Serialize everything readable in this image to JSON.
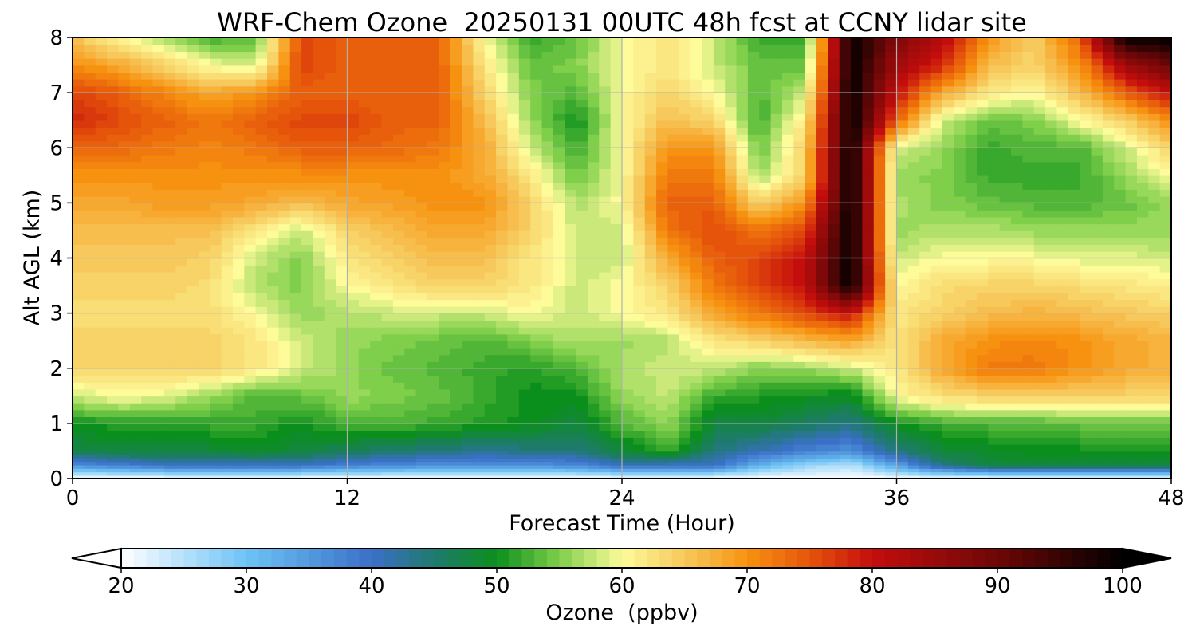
{
  "chart_data": {
    "type": "heatmap",
    "title": "WRF-Chem Ozone  20250131 00UTC 48h fcst at CCNY lidar site",
    "xlabel": "Forecast Time (Hour)",
    "ylabel": "Alt AGL (km)",
    "xlim": [
      0,
      48
    ],
    "ylim": [
      0,
      8
    ],
    "xticks": [
      0,
      12,
      24,
      36,
      48
    ],
    "yticks": [
      0,
      1,
      2,
      3,
      4,
      5,
      6,
      7,
      8
    ],
    "grid": true,
    "x": [
      0,
      2,
      4,
      6,
      8,
      10,
      12,
      14,
      16,
      18,
      20,
      22,
      24,
      26,
      28,
      30,
      32,
      34,
      36,
      38,
      40,
      42,
      44,
      46,
      48
    ],
    "y": [
      0,
      0.25,
      0.5,
      1,
      1.5,
      2,
      2.5,
      3,
      3.5,
      4,
      4.5,
      5,
      5.5,
      6,
      6.5,
      7,
      7.5,
      8
    ],
    "z": [
      [
        20,
        20,
        20,
        20,
        20,
        20,
        20,
        20,
        20,
        20,
        20,
        20,
        20,
        20,
        20,
        20,
        20,
        20,
        20,
        20,
        20,
        20,
        20,
        20,
        20
      ],
      [
        36,
        38,
        40,
        40,
        40,
        40,
        38,
        37,
        36,
        36,
        36,
        37,
        41,
        40,
        40,
        32,
        27,
        25,
        34,
        44,
        48,
        48,
        48,
        48,
        48
      ],
      [
        47,
        48,
        48,
        48,
        49,
        48,
        46,
        45,
        44,
        43,
        44,
        44,
        48,
        52,
        44,
        41,
        38,
        36,
        44,
        48,
        49,
        50,
        50,
        50,
        50
      ],
      [
        50,
        51,
        51,
        52,
        52,
        50,
        53,
        53,
        52,
        51,
        50,
        48,
        53,
        56,
        48,
        48,
        46,
        44,
        50,
        52,
        53,
        53,
        54,
        54,
        54
      ],
      [
        58,
        60,
        59,
        56,
        53,
        54,
        56,
        55,
        54,
        52,
        50,
        50,
        56,
        58,
        52,
        51,
        50,
        49,
        60,
        63,
        64,
        64,
        64,
        64,
        64
      ],
      [
        64,
        64,
        64,
        64,
        62,
        58,
        56,
        54,
        53,
        52,
        51,
        53,
        57,
        58,
        58,
        55,
        56,
        58,
        62,
        68,
        72,
        72,
        70,
        68,
        67
      ],
      [
        64,
        64,
        64,
        64,
        62,
        58,
        56,
        55,
        54,
        53,
        55,
        57,
        56,
        57,
        62,
        64,
        66,
        68,
        62,
        68,
        70,
        71,
        70,
        68,
        67
      ],
      [
        63,
        63,
        63,
        63,
        60,
        56,
        57,
        58,
        58,
        58,
        60,
        58,
        60,
        62,
        68,
        72,
        76,
        80,
        62,
        64,
        66,
        67,
        66,
        65,
        64
      ],
      [
        64,
        64,
        64,
        63,
        57,
        55,
        60,
        62,
        64,
        64,
        62,
        58,
        60,
        64,
        72,
        76,
        80,
        100,
        60,
        63,
        64,
        64,
        63,
        62,
        61
      ],
      [
        65,
        65,
        65,
        64,
        58,
        55,
        62,
        64,
        66,
        66,
        62,
        58,
        58,
        68,
        74,
        76,
        80,
        100,
        58,
        60,
        60,
        60,
        59,
        59,
        58
      ],
      [
        66,
        66,
        66,
        66,
        62,
        58,
        64,
        66,
        68,
        68,
        64,
        58,
        58,
        72,
        76,
        72,
        76,
        100,
        56,
        57,
        57,
        56,
        56,
        56,
        56
      ],
      [
        68,
        68,
        69,
        69,
        68,
        66,
        68,
        69,
        70,
        70,
        64,
        57,
        60,
        74,
        74,
        64,
        70,
        100,
        57,
        55,
        54,
        53,
        53,
        54,
        56
      ],
      [
        70,
        70,
        70,
        70,
        70,
        70,
        70,
        70,
        70,
        68,
        62,
        54,
        60,
        72,
        72,
        56,
        64,
        100,
        56,
        55,
        52,
        52,
        52,
        56,
        60
      ],
      [
        74,
        73,
        72,
        71,
        72,
        74,
        74,
        73,
        72,
        68,
        58,
        52,
        60,
        70,
        70,
        54,
        64,
        100,
        58,
        56,
        52,
        53,
        53,
        58,
        64
      ],
      [
        78,
        76,
        74,
        72,
        74,
        76,
        76,
        74,
        74,
        66,
        56,
        50,
        60,
        66,
        64,
        52,
        62,
        100,
        74,
        58,
        54,
        55,
        60,
        64,
        70
      ],
      [
        76,
        74,
        71,
        68,
        70,
        74,
        74,
        74,
        74,
        64,
        55,
        53,
        60,
        64,
        60,
        53,
        58,
        100,
        80,
        68,
        62,
        60,
        66,
        74,
        80
      ],
      [
        70,
        68,
        64,
        60,
        58,
        76,
        74,
        74,
        74,
        62,
        54,
        55,
        60,
        62,
        58,
        54,
        54,
        100,
        84,
        78,
        66,
        64,
        70,
        84,
        90
      ],
      [
        66,
        60,
        56,
        52,
        54,
        76,
        74,
        74,
        74,
        60,
        52,
        54,
        60,
        62,
        58,
        52,
        52,
        100,
        88,
        82,
        70,
        64,
        74,
        100,
        100
      ]
    ],
    "colorbar": {
      "label": "Ozone  (ppbv)",
      "min": 20,
      "max": 100,
      "ticks": [
        20,
        30,
        40,
        50,
        60,
        70,
        80,
        90,
        100
      ],
      "extend": "both",
      "stops": [
        {
          "v": 20,
          "color": "#ffffff"
        },
        {
          "v": 30,
          "color": "#6ec3f5"
        },
        {
          "v": 40,
          "color": "#3a70c8"
        },
        {
          "v": 45,
          "color": "#1f7a6e"
        },
        {
          "v": 50,
          "color": "#0b8f1c"
        },
        {
          "v": 55,
          "color": "#7fcf4a"
        },
        {
          "v": 60,
          "color": "#fdfb9a"
        },
        {
          "v": 65,
          "color": "#f7c95c"
        },
        {
          "v": 70,
          "color": "#f79210"
        },
        {
          "v": 75,
          "color": "#e6540b"
        },
        {
          "v": 80,
          "color": "#c40d0d"
        },
        {
          "v": 90,
          "color": "#6e0707"
        },
        {
          "v": 100,
          "color": "#000000"
        }
      ]
    }
  }
}
